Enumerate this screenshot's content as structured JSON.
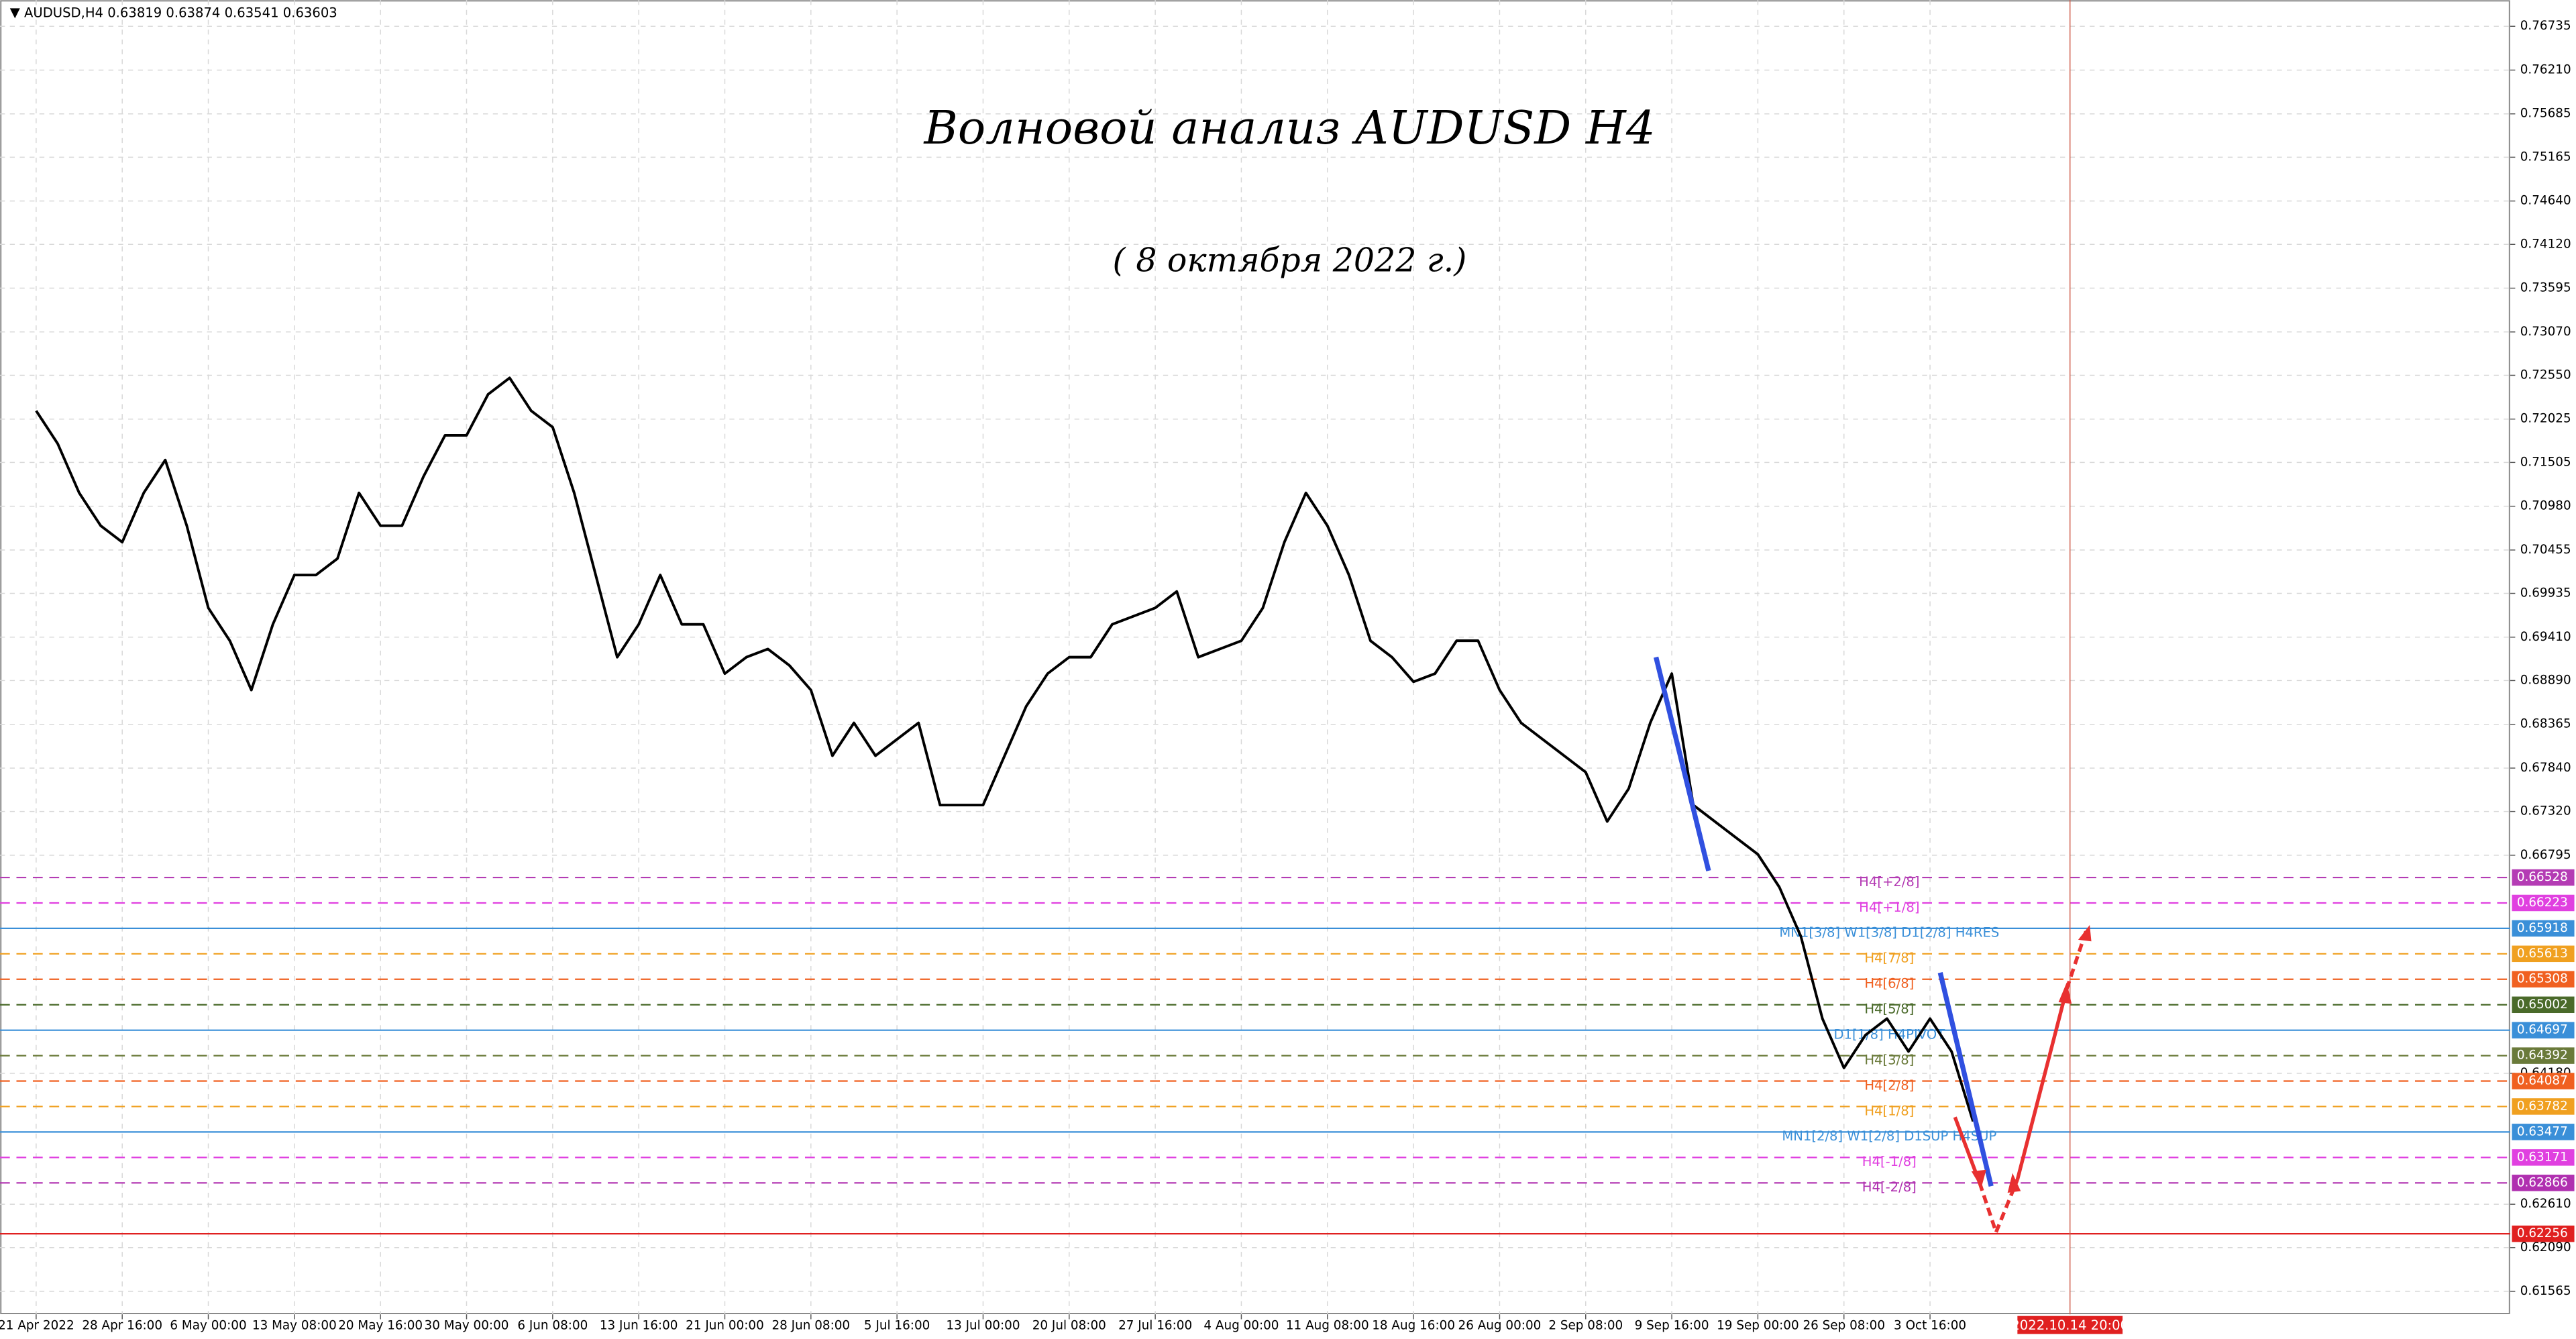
{
  "chart_data": {
    "type": "line",
    "title": "Волновой анализ AUDUSD H4",
    "subtitle": "( 8 октября 2022 г.)",
    "header": "AUDUSD,H4  0.63819 0.63874 0.63541 0.63603",
    "cursor_label": "2022.10.14 20:00",
    "color": "#000000",
    "grid": true,
    "categories": [
      "21 Apr 2022",
      null,
      null,
      null,
      "28 Apr 16:00",
      null,
      null,
      null,
      "6 May 00:00",
      null,
      null,
      null,
      "13 May 08:00",
      null,
      null,
      null,
      "20 May 16:00",
      null,
      null,
      null,
      "30 May 00:00",
      null,
      null,
      null,
      "6 Jun 08:00",
      null,
      null,
      null,
      "13 Jun 16:00",
      null,
      null,
      null,
      "21 Jun 00:00",
      null,
      null,
      null,
      "28 Jun 08:00",
      null,
      null,
      null,
      "5 Jul 16:00",
      null,
      null,
      null,
      "13 Jul 00:00",
      null,
      null,
      null,
      "20 Jul 08:00",
      null,
      null,
      null,
      "27 Jul 16:00",
      null,
      null,
      null,
      "4 Aug 00:00",
      null,
      null,
      null,
      "11 Aug 08:00",
      null,
      null,
      null,
      "18 Aug 16:00",
      null,
      null,
      null,
      "26 Aug 00:00",
      null,
      null,
      null,
      "2 Sep 08:00",
      null,
      null,
      null,
      "9 Sep 16:00",
      null,
      null,
      null,
      "19 Sep 00:00",
      null,
      null,
      null,
      "26 Sep 08:00",
      null,
      null,
      null,
      "3 Oct 16:00",
      null,
      null
    ],
    "values": [
      0.72125,
      0.71731,
      0.7114,
      0.70746,
      0.70549,
      0.7114,
      0.71534,
      0.70746,
      0.69761,
      0.69367,
      0.68776,
      0.69564,
      0.70155,
      0.70155,
      0.70352,
      0.7114,
      0.70746,
      0.70746,
      0.71337,
      0.7183,
      0.7183,
      0.72322,
      0.72519,
      0.72125,
      0.71928,
      0.7114,
      0.70155,
      0.6917,
      0.69564,
      0.70155,
      0.69564,
      0.69564,
      0.68973,
      0.6917,
      0.69268,
      0.69071,
      0.68776,
      0.67988,
      0.68382,
      0.67988,
      0.68185,
      0.68382,
      0.67397,
      0.67397,
      0.67397,
      0.67988,
      0.68579,
      0.68973,
      0.6917,
      0.6917,
      0.69564,
      0.69662,
      0.69761,
      0.69958,
      0.6917,
      0.69268,
      0.69367,
      0.69761,
      0.70549,
      0.7114,
      0.70746,
      0.70155,
      0.69367,
      0.6917,
      0.68875,
      0.68973,
      0.69367,
      0.69367,
      0.68776,
      0.68382,
      0.68185,
      0.67988,
      0.67791,
      0.672,
      0.67594,
      0.68382,
      0.68973,
      0.67397,
      0.672,
      0.67003,
      0.66806,
      0.66412,
      0.65821,
      0.64836,
      0.64245,
      0.64639,
      0.64836,
      0.64442,
      0.64836,
      0.64442,
      0.63603
    ],
    "ylim": [
      0.6129,
      0.7705
    ],
    "yticks": [
      {
        "value": 0.76735,
        "label": "0.76735"
      },
      {
        "value": 0.7621,
        "label": "0.76210"
      },
      {
        "value": 0.75685,
        "label": "0.75685"
      },
      {
        "value": 0.75165,
        "label": "0.75165"
      },
      {
        "value": 0.7464,
        "label": "0.74640"
      },
      {
        "value": 0.7412,
        "label": "0.74120"
      },
      {
        "value": 0.73595,
        "label": "0.73595"
      },
      {
        "value": 0.7307,
        "label": "0.73070"
      },
      {
        "value": 0.7255,
        "label": "0.72550"
      },
      {
        "value": 0.72025,
        "label": "0.72025"
      },
      {
        "value": 0.71505,
        "label": "0.71505"
      },
      {
        "value": 0.7098,
        "label": "0.70980"
      },
      {
        "value": 0.70455,
        "label": "0.70455"
      },
      {
        "value": 0.69935,
        "label": "0.69935"
      },
      {
        "value": 0.6941,
        "label": "0.69410"
      },
      {
        "value": 0.6889,
        "label": "0.68890"
      },
      {
        "value": 0.68365,
        "label": "0.68365"
      },
      {
        "value": 0.6784,
        "label": "0.67840"
      },
      {
        "value": 0.6732,
        "label": "0.67320"
      },
      {
        "value": 0.66795,
        "label": "0.66795"
      },
      {
        "value": 0.6418,
        "label": "0.64180"
      },
      {
        "value": 0.6261,
        "label": "0.62610"
      },
      {
        "value": 0.6209,
        "label": "0.62090"
      },
      {
        "value": 0.61565,
        "label": "0.61565"
      }
    ],
    "levels": [
      {
        "value": 0.66528,
        "label": "H4[+2/8]",
        "color": "#b43cb4",
        "style": "dashed"
      },
      {
        "value": 0.66223,
        "label": "H4[+1/8]",
        "color": "#e040e0",
        "style": "dashed"
      },
      {
        "value": 0.65918,
        "label": "MN1[3/8] W1[3/8] D1[2/8] H4RES",
        "color": "#3a8fd8",
        "style": "solid"
      },
      {
        "value": 0.65613,
        "label": "H4[7/8]",
        "color": "#f0a020",
        "style": "dashed"
      },
      {
        "value": 0.65308,
        "label": "H4[6/8]",
        "color": "#f06020",
        "style": "dashed"
      },
      {
        "value": 0.65002,
        "label": "H4[5/8]",
        "color": "#4a6a2a",
        "style": "dashed"
      },
      {
        "value": 0.64697,
        "label": "D1[1/8] H4PIVOT",
        "color": "#3a8fd8",
        "style": "solid"
      },
      {
        "value": 0.64392,
        "label": "H4[3/8]",
        "color": "#6a7a3a",
        "style": "dashed"
      },
      {
        "value": 0.64087,
        "label": "H4[2/8]",
        "color": "#f06020",
        "style": "dashed"
      },
      {
        "value": 0.63782,
        "label": "H4[1/8]",
        "color": "#f0a020",
        "style": "dashed"
      },
      {
        "value": 0.63477,
        "label": "MN1[2/8] W1[2/8] D1SUP H4SUP",
        "color": "#3a8fd8",
        "style": "solid"
      },
      {
        "value": 0.63171,
        "label": "H4[-1/8]",
        "color": "#e040e0",
        "style": "dashed"
      },
      {
        "value": 0.62866,
        "label": "H4[-2/8]",
        "color": "#b030b0",
        "style": "dashed"
      },
      {
        "value": 0.62256,
        "color": "#e02020",
        "style": "solid"
      }
    ]
  }
}
